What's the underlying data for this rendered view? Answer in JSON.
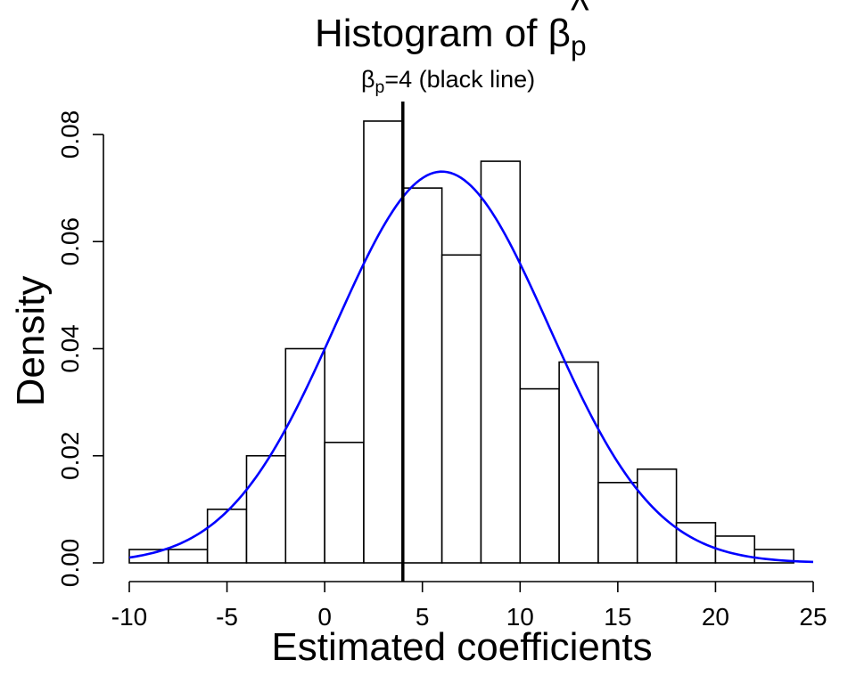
{
  "chart_data": {
    "type": "bar",
    "title": {
      "main": "Histogram of ",
      "hat": "^",
      "symbol": "β",
      "subscript": "p"
    },
    "subtitle": {
      "symbol": "β",
      "subscript": "p",
      "text": "=4 (black line)"
    },
    "xlabel": "Estimated coefficients",
    "ylabel": "Density",
    "xlim": [
      -10,
      25
    ],
    "ylim": [
      0,
      0.08
    ],
    "x_ticks": [
      "-10",
      "-5",
      "0",
      "5",
      "10",
      "15",
      "20",
      "25"
    ],
    "x_tick_values": [
      -10,
      -5,
      0,
      5,
      10,
      15,
      20,
      25
    ],
    "y_ticks": [
      "0.00",
      "0.02",
      "0.04",
      "0.06",
      "0.08"
    ],
    "y_tick_values": [
      0,
      0.02,
      0.04,
      0.06,
      0.08
    ],
    "bins": [
      {
        "start": -10,
        "end": -8,
        "density": 0.0025
      },
      {
        "start": -8,
        "end": -6,
        "density": 0.0025
      },
      {
        "start": -6,
        "end": -4,
        "density": 0.01
      },
      {
        "start": -4,
        "end": -2,
        "density": 0.02
      },
      {
        "start": -2,
        "end": 0,
        "density": 0.04
      },
      {
        "start": 0,
        "end": 2,
        "density": 0.0225
      },
      {
        "start": 2,
        "end": 4,
        "density": 0.0825
      },
      {
        "start": 4,
        "end": 6,
        "density": 0.07
      },
      {
        "start": 6,
        "end": 8,
        "density": 0.0575
      },
      {
        "start": 8,
        "end": 10,
        "density": 0.075
      },
      {
        "start": 10,
        "end": 12,
        "density": 0.0325
      },
      {
        "start": 12,
        "end": 14,
        "density": 0.0375
      },
      {
        "start": 14,
        "end": 16,
        "density": 0.015
      },
      {
        "start": 16,
        "end": 18,
        "density": 0.0175
      },
      {
        "start": 18,
        "end": 20,
        "density": 0.0075
      },
      {
        "start": 20,
        "end": 22,
        "density": 0.005
      },
      {
        "start": 22,
        "end": 24,
        "density": 0.0025
      }
    ],
    "normal_curve": {
      "mean": 6.0,
      "sd": 5.46,
      "x_range": [
        -10,
        25
      ],
      "color": "#0000ff"
    },
    "reference_line": {
      "x": 4,
      "color": "#000000"
    },
    "grid": false,
    "bar_fill": "#ffffff",
    "bar_stroke": "#000000"
  }
}
